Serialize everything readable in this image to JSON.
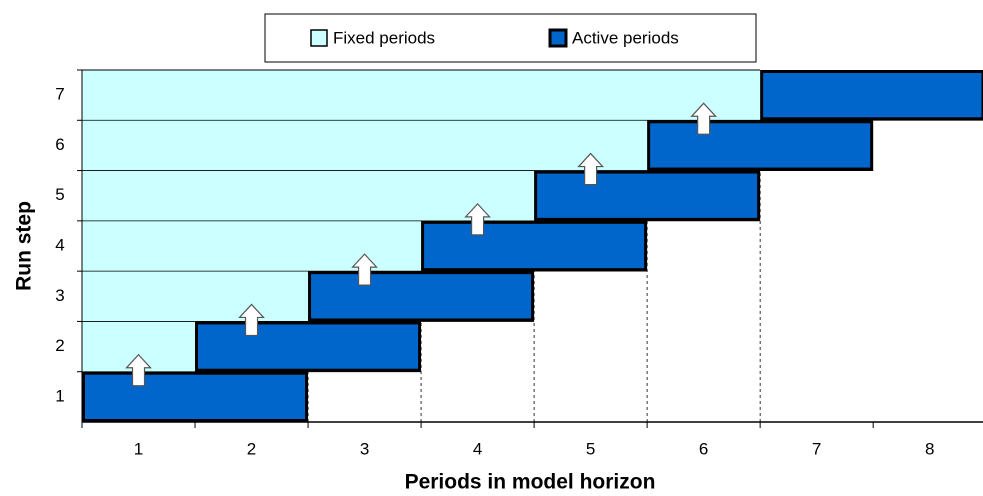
{
  "chart_data": {
    "type": "rolling-horizon",
    "x_label": "Periods in model horizon",
    "y_label": "Run step",
    "legend": {
      "fixed": "Fixed periods",
      "active": "Active periods"
    },
    "fixed_color": "#ccffff",
    "active_color": "#0066cc",
    "periods": [
      "1",
      "2",
      "3",
      "4",
      "5",
      "6",
      "7",
      "8"
    ],
    "steps": [
      "1",
      "2",
      "3",
      "4",
      "5",
      "6",
      "7"
    ],
    "active": [
      [
        1,
        2
      ],
      [
        2,
        3
      ],
      [
        3,
        4
      ],
      [
        4,
        5
      ],
      [
        5,
        6
      ],
      [
        6,
        7
      ],
      [
        7,
        8
      ]
    ]
  }
}
